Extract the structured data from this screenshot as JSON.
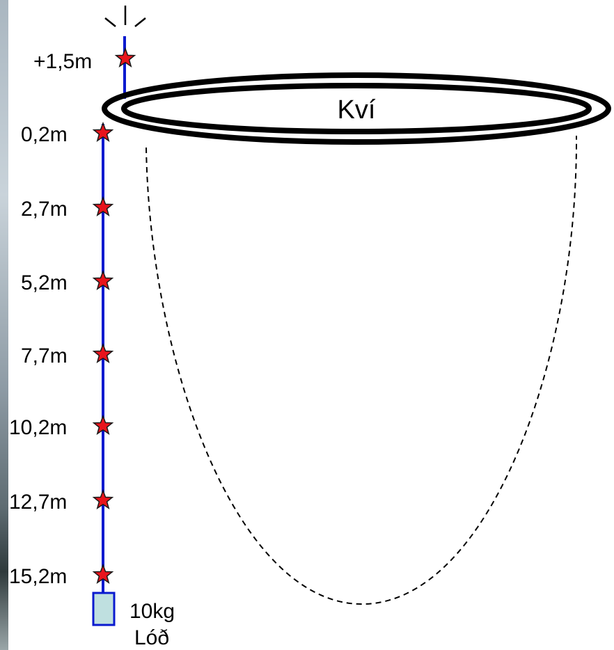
{
  "pen": {
    "label": "Kví"
  },
  "sensors": [
    {
      "label": "+1,5m"
    },
    {
      "label": "0,2m"
    },
    {
      "label": "2,7m"
    },
    {
      "label": "5,2m"
    },
    {
      "label": "7,7m"
    },
    {
      "label": "10,2m"
    },
    {
      "label": "12,7m"
    },
    {
      "label": "15,2m"
    }
  ],
  "weight": {
    "mass": "10kg",
    "name": "Lóð"
  },
  "colors": {
    "line": "#0a1acf",
    "star_fill": "#e8141c",
    "star_stroke": "#1a1a1a",
    "weight_fill": "#bfe0e0",
    "weight_stroke": "#0a1acf",
    "ring": "#000000"
  }
}
